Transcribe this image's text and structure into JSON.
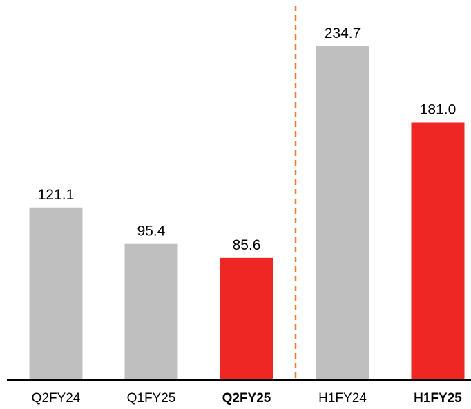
{
  "chart_data": {
    "type": "bar",
    "title": "",
    "xlabel": "",
    "ylabel": "",
    "categories": [
      "Q2FY24",
      "Q1FY25",
      "Q2FY25",
      "H1FY24",
      "H1FY25"
    ],
    "values": [
      121.1,
      95.4,
      85.6,
      234.7,
      181.0
    ],
    "value_labels": [
      "121.1",
      "95.4",
      "85.6",
      "234.7",
      "181.0"
    ],
    "highlight": [
      false,
      false,
      true,
      false,
      true
    ],
    "ylim": [
      0,
      280
    ],
    "grid": false,
    "legend": "none",
    "divider_after_index": 2
  },
  "colors": {
    "bar_default": "#bfbfbf",
    "bar_highlight": "#ee2624",
    "divider": "#ed7d31",
    "axis": "#000000"
  }
}
